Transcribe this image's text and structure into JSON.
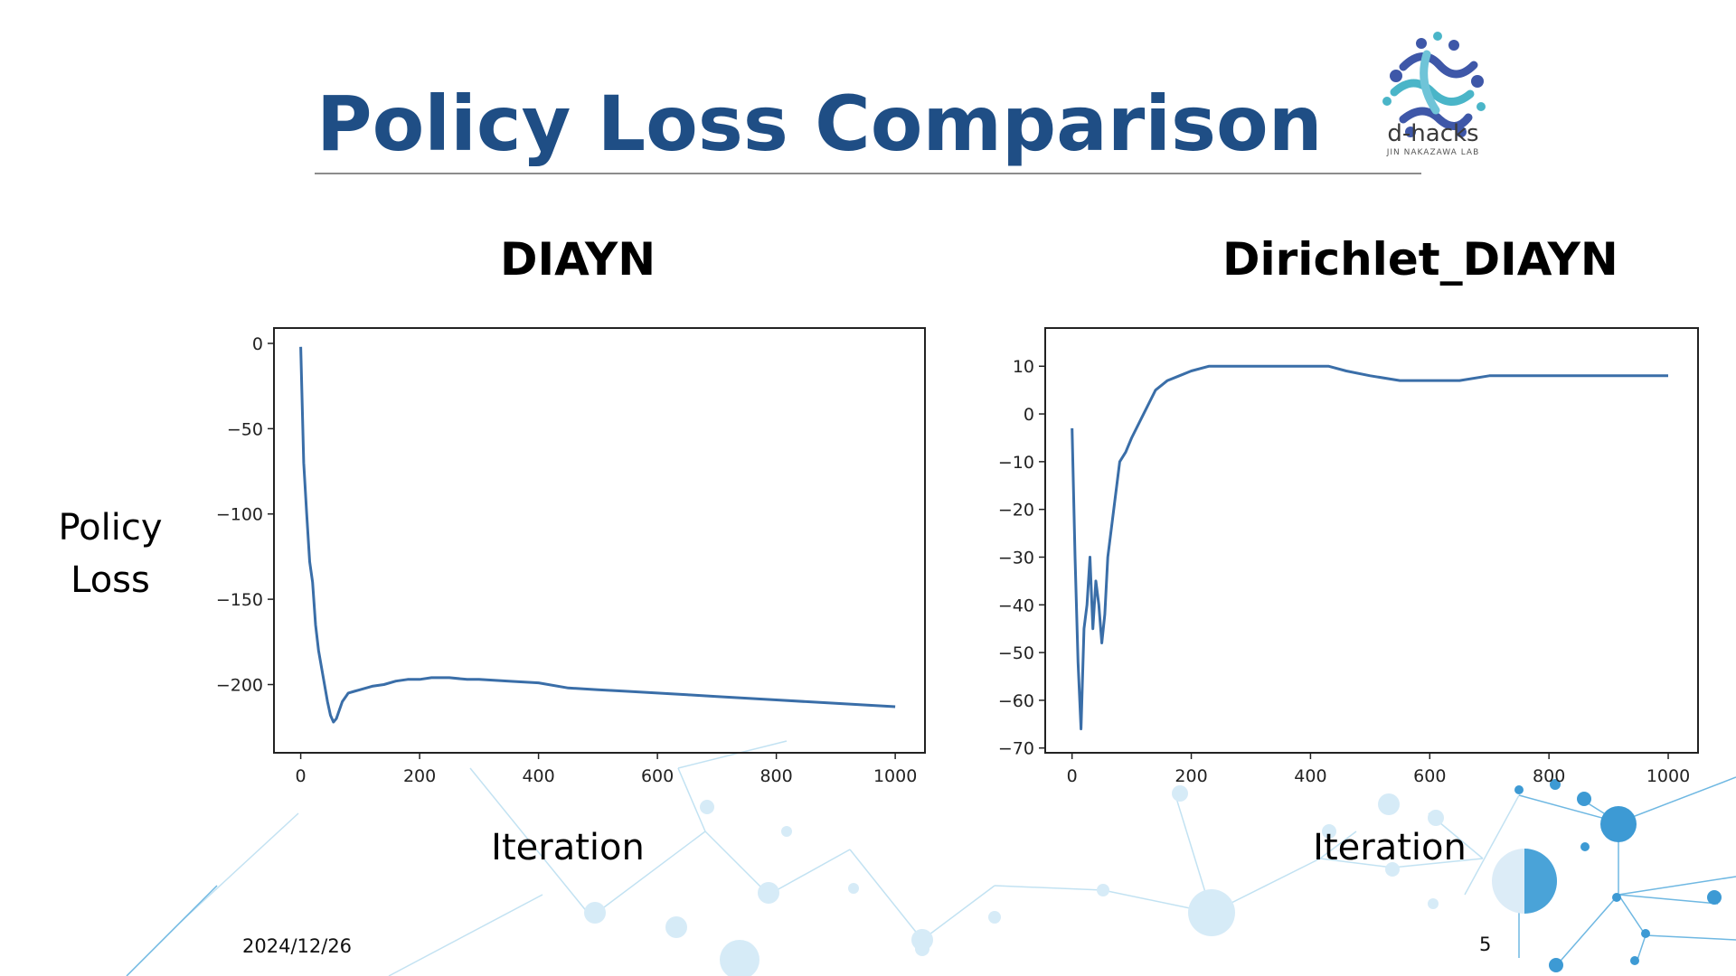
{
  "slide": {
    "title": "Policy Loss Comparison",
    "date": "2024/12/26",
    "page_number": "5",
    "logo": {
      "name": "d-hacks",
      "subtitle": "JIN NAKAZAWA LAB"
    },
    "colors": {
      "title": "#1f4e85",
      "line": "#3a6ea8",
      "network": "#4aa3d8"
    }
  },
  "labels": {
    "y_axis": "Policy Loss",
    "x_axis_left": "Iteration",
    "x_axis_right": "Iteration"
  },
  "chart_data": [
    {
      "type": "line",
      "title": "DIAYN",
      "xlabel": "Iteration",
      "ylabel": "Policy Loss",
      "xlim": [
        -45,
        1050
      ],
      "ylim": [
        -240,
        9
      ],
      "xticks": [
        0,
        200,
        400,
        600,
        800,
        1000
      ],
      "yticks": [
        0,
        -50,
        -100,
        -150,
        -200
      ],
      "grid": false,
      "series": [
        {
          "x": [
            0,
            5,
            10,
            15,
            20,
            25,
            30,
            35,
            40,
            45,
            50,
            55,
            60,
            65,
            70,
            80,
            90,
            100,
            120,
            140,
            160,
            180,
            200,
            220,
            250,
            280,
            300,
            350,
            400,
            450,
            500,
            550,
            600,
            650,
            700,
            750,
            800,
            850,
            900,
            950,
            1000
          ],
          "y": [
            -2,
            -70,
            -100,
            -128,
            -140,
            -165,
            -180,
            -190,
            -200,
            -210,
            -218,
            -222,
            -220,
            -215,
            -210,
            -205,
            -204,
            -203,
            -201,
            -200,
            -198,
            -197,
            -197,
            -196,
            -196,
            -197,
            -197,
            -198,
            -199,
            -202,
            -203,
            -204,
            -205,
            -206,
            -207,
            -208,
            -209,
            -210,
            -211,
            -212,
            -213
          ]
        }
      ]
    },
    {
      "type": "line",
      "title": "Dirichlet_DIAYN",
      "xlabel": "Iteration",
      "ylabel": "",
      "xlim": [
        -45,
        1050
      ],
      "ylim": [
        -71,
        18
      ],
      "xticks": [
        0,
        200,
        400,
        600,
        800,
        1000
      ],
      "yticks": [
        10,
        0,
        -10,
        -20,
        -30,
        -40,
        -50,
        -60,
        -70
      ],
      "grid": false,
      "series": [
        {
          "x": [
            0,
            5,
            10,
            15,
            20,
            25,
            30,
            35,
            40,
            45,
            50,
            55,
            60,
            70,
            80,
            90,
            100,
            120,
            140,
            160,
            180,
            200,
            230,
            260,
            300,
            350,
            400,
            430,
            460,
            500,
            550,
            600,
            650,
            700,
            750,
            800,
            850,
            900,
            950,
            1000
          ],
          "y": [
            -3,
            -30,
            -52,
            -66,
            -45,
            -40,
            -30,
            -45,
            -35,
            -40,
            -48,
            -42,
            -30,
            -20,
            -10,
            -8,
            -5,
            0,
            5,
            7,
            8,
            9,
            10,
            10,
            10,
            10,
            10,
            10,
            9,
            8,
            7,
            7,
            7,
            8,
            8,
            8,
            8,
            8,
            8,
            8
          ]
        }
      ]
    }
  ]
}
